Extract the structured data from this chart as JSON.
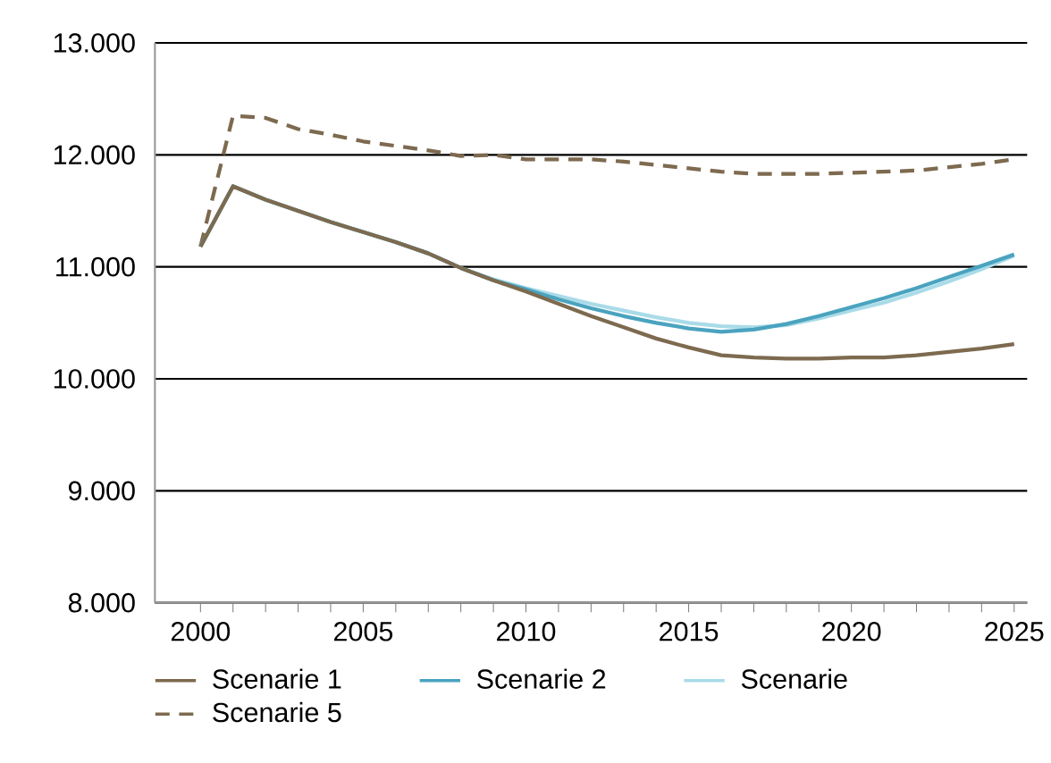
{
  "chart_data": {
    "type": "line",
    "x": [
      2000,
      2001,
      2002,
      2003,
      2004,
      2005,
      2006,
      2007,
      2008,
      2009,
      2010,
      2011,
      2012,
      2013,
      2014,
      2015,
      2016,
      2017,
      2018,
      2019,
      2020,
      2021,
      2022,
      2023,
      2024,
      2025
    ],
    "series": [
      {
        "name": "Scenarie 1",
        "color": "#7d6a4f",
        "line_style": "solid",
        "values": [
          11180,
          11720,
          11600,
          11500,
          11400,
          11310,
          11220,
          11120,
          10990,
          10880,
          10780,
          10670,
          10560,
          10460,
          10360,
          10280,
          10210,
          10190,
          10180,
          10180,
          10190,
          10190,
          10210,
          10240,
          10270,
          10310
        ]
      },
      {
        "name": "Scenarie 2",
        "color": "#4aa3bf",
        "line_style": "solid",
        "values": [
          11180,
          11720,
          11600,
          11500,
          11400,
          11310,
          11220,
          11120,
          10990,
          10880,
          10800,
          10710,
          10630,
          10560,
          10500,
          10450,
          10420,
          10440,
          10490,
          10560,
          10640,
          10720,
          10810,
          10910,
          11010,
          11110
        ]
      },
      {
        "name": "Scenarie",
        "color": "#a9dbe8",
        "line_style": "solid",
        "values": [
          11180,
          11720,
          11600,
          11500,
          11400,
          11310,
          11220,
          11120,
          10990,
          10890,
          10810,
          10740,
          10670,
          10610,
          10550,
          10500,
          10470,
          10460,
          10480,
          10540,
          10610,
          10680,
          10770,
          10870,
          10980,
          11100
        ]
      },
      {
        "name": "Scenarie 5",
        "color": "#7d6a4f",
        "line_style": "dashed",
        "values": [
          11180,
          12350,
          12330,
          12230,
          12180,
          12120,
          12080,
          12040,
          11990,
          12000,
          11960,
          11960,
          11960,
          11940,
          11910,
          11880,
          11850,
          11830,
          11830,
          11830,
          11840,
          11850,
          11860,
          11890,
          11920,
          11960
        ]
      }
    ],
    "xlim": [
      1998.6,
      2025.4
    ],
    "xticks": [
      2000,
      {
        "value": 2001,
        "label": null
      },
      {
        "value": 2002,
        "label": null
      },
      {
        "value": 2003,
        "label": null
      },
      {
        "value": 2004,
        "label": null
      },
      2005,
      {
        "value": 2006,
        "label": null
      },
      {
        "value": 2007,
        "label": null
      },
      {
        "value": 2008,
        "label": null
      },
      {
        "value": 2009,
        "label": null
      },
      2010,
      {
        "value": 2011,
        "label": null
      },
      {
        "value": 2012,
        "label": null
      },
      {
        "value": 2013,
        "label": null
      },
      {
        "value": 2014,
        "label": null
      },
      2015,
      {
        "value": 2016,
        "label": null
      },
      {
        "value": 2017,
        "label": null
      },
      {
        "value": 2018,
        "label": null
      },
      {
        "value": 2019,
        "label": null
      },
      2020,
      {
        "value": 2021,
        "label": null
      },
      {
        "value": 2022,
        "label": null
      },
      {
        "value": 2023,
        "label": null
      },
      {
        "value": 2024,
        "label": null
      },
      2025
    ],
    "ylim": [
      8000,
      13000
    ],
    "yticks": [
      {
        "value": 8000,
        "label": "8.000"
      },
      {
        "value": 9000,
        "label": "9.000"
      },
      {
        "value": 10000,
        "label": "10.000"
      },
      {
        "value": 11000,
        "label": "11.000"
      },
      {
        "value": 12000,
        "label": "12.000"
      },
      {
        "value": 13000,
        "label": "13.000"
      }
    ],
    "grid": "y",
    "legend": "bottom",
    "marker": "none"
  }
}
